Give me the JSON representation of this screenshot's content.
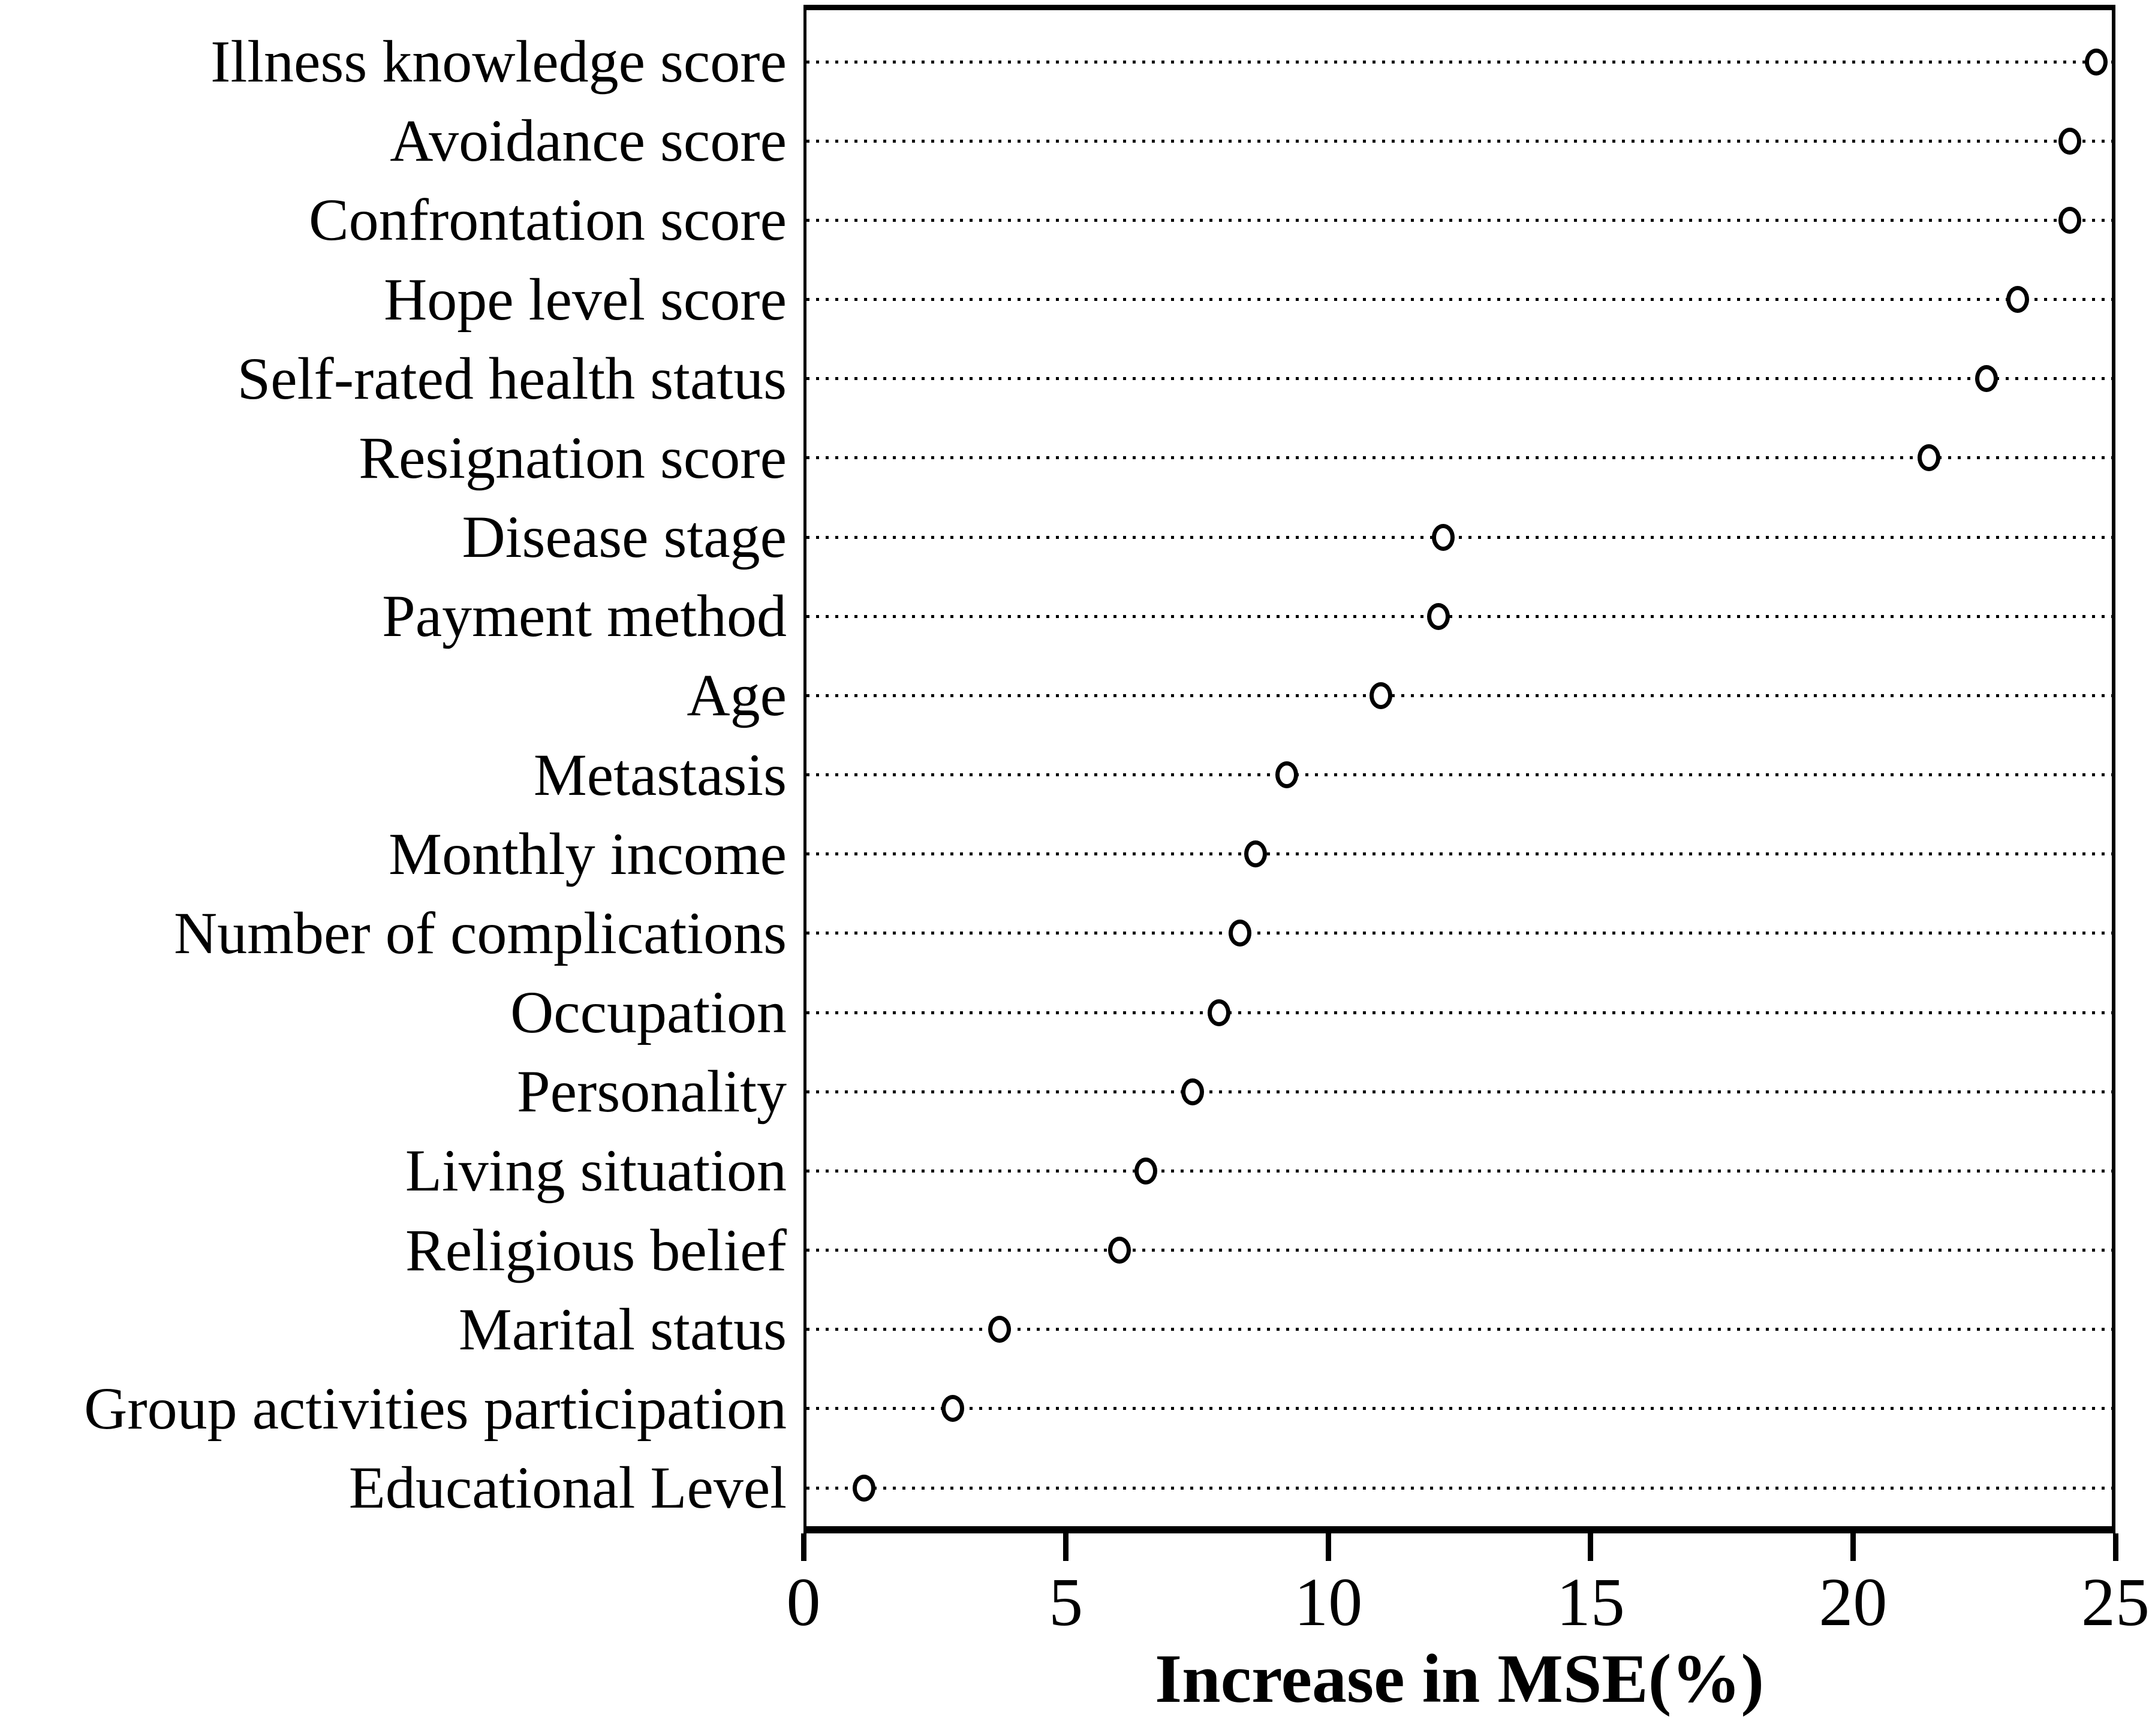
{
  "figure": {
    "background": "#ffffff",
    "foreground": "#000000"
  },
  "chart_data": {
    "type": "scatter",
    "variant": "horizontal-dot-plot",
    "title": "",
    "xlabel": "Increase in MSE(%)",
    "ylabel": "",
    "xlim": [
      0,
      25
    ],
    "xticks": [
      0,
      5,
      10,
      15,
      20,
      25
    ],
    "grid": "dotted-horizontal-row-lines",
    "legend_position": "none",
    "marker": "open-circle",
    "marker_color": "#000000",
    "categories": [
      "Illness knowledge score",
      "Avoidance score",
      "Confrontation score",
      "Hope level score",
      "Self-rated health status",
      "Resignation score",
      "Disease stage",
      "Payment method",
      "Age",
      "Metastasis",
      "Monthly income",
      "Number of complications",
      "Occupation",
      "Personality",
      "Living situation",
      "Religious belief",
      "Marital status",
      "Group activities participation",
      "Educational Level"
    ],
    "values": [
      24.7,
      24.2,
      24.2,
      23.2,
      22.6,
      21.5,
      12.2,
      12.1,
      11.0,
      9.2,
      8.6,
      8.3,
      7.9,
      7.4,
      6.5,
      6.0,
      3.7,
      2.8,
      1.1
    ]
  }
}
